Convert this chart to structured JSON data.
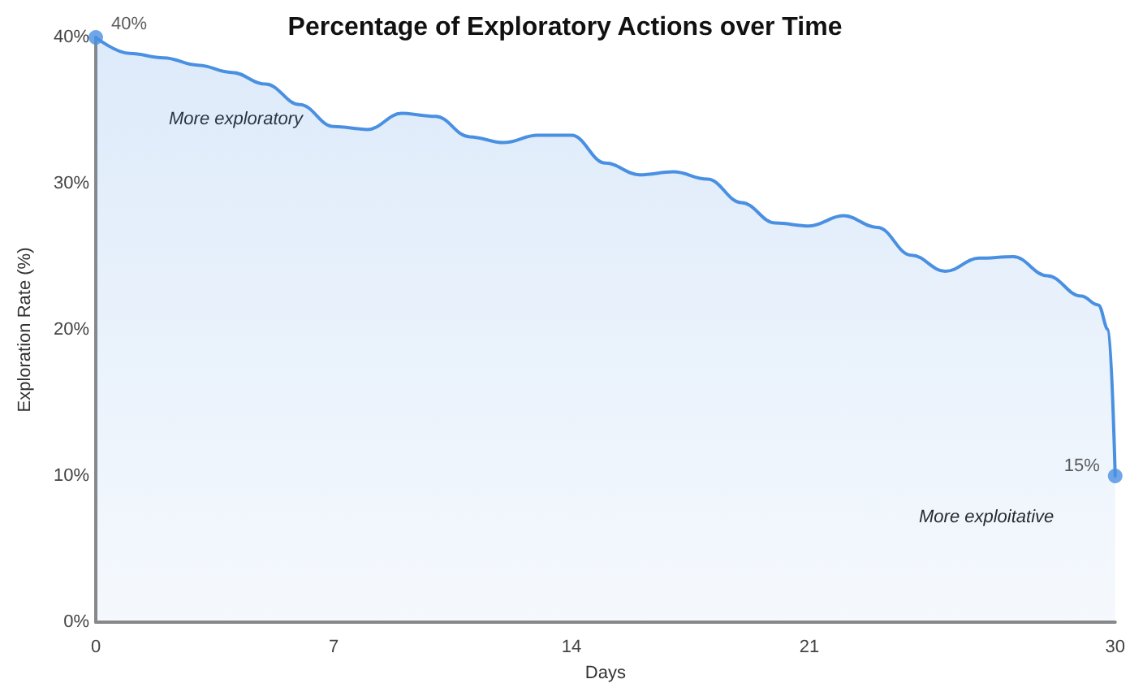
{
  "chart_data": {
    "type": "area",
    "title": "Percentage of Exploratory Actions over Time",
    "xlabel": "Days",
    "ylabel": "Exploration Rate (%)",
    "series": [
      {
        "color": "#4a90e2",
        "x": [
          0,
          1,
          2,
          3,
          4,
          5,
          6,
          7,
          8,
          9,
          10,
          11,
          12,
          13,
          14,
          15,
          16,
          17,
          18,
          19,
          20,
          21,
          22,
          23,
          24,
          25,
          26,
          27,
          28,
          29,
          29.5,
          29.8,
          30
        ],
        "values": [
          40,
          38.9,
          38.6,
          38.1,
          37.6,
          36.8,
          35.4,
          33.9,
          33.7,
          34.8,
          34.6,
          33.2,
          32.8,
          33.3,
          33.3,
          31.4,
          30.6,
          30.8,
          30.3,
          28.7,
          27.3,
          27.1,
          27.8,
          27.0,
          25.1,
          24.0,
          24.9,
          25.0,
          23.7,
          22.3,
          21.7,
          20.0,
          10
        ]
      }
    ],
    "xlim": [
      0,
      30
    ],
    "xticks": [
      0,
      7,
      14,
      21,
      30
    ],
    "ylim": [
      0,
      40
    ],
    "yticks": [
      {
        "value": 0,
        "label": "0%"
      },
      {
        "value": 10,
        "label": "10%"
      },
      {
        "value": 20,
        "label": "20%"
      },
      {
        "value": 30,
        "label": "30%"
      },
      {
        "value": 40,
        "label": "40%"
      }
    ],
    "grid": false,
    "marker": "none",
    "line_style": "solid",
    "annotations": [
      {
        "text": "40%",
        "x": 0,
        "y": 40
      },
      {
        "text": "15%",
        "x": 30,
        "y": 10
      },
      "More exploratory",
      "More exploitative"
    ]
  }
}
